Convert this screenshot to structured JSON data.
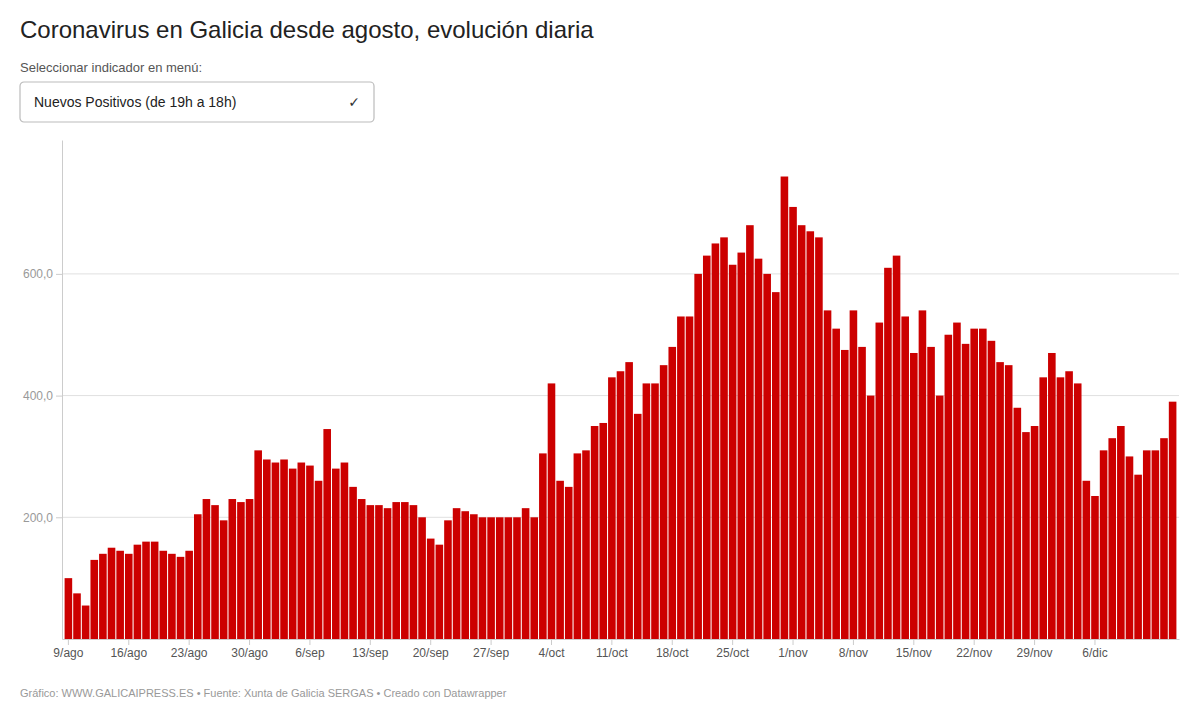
{
  "chart_data": {
    "type": "bar",
    "title": "Coronavirus en Galicia desde agosto, evolución diaria",
    "subtitle": "Seleccionar indicador en menú:",
    "annotations": [
      "Nuevos Positivos (de 19h a 18h)",
      "✓",
      "Gráfico: WWW.GALICAIPRESS.ES • Fuente: Xunta de Galicia SERGAS • Creado con Datawrapper"
    ],
    "categories": [
      "9/ago",
      null,
      null,
      null,
      null,
      null,
      null,
      "16/ago",
      null,
      null,
      null,
      null,
      null,
      null,
      "23/ago",
      null,
      null,
      null,
      null,
      null,
      null,
      "30/ago",
      null,
      null,
      null,
      null,
      null,
      null,
      "6/sep",
      null,
      null,
      null,
      null,
      null,
      null,
      "13/sep",
      null,
      null,
      null,
      null,
      null,
      null,
      "20/sep",
      null,
      null,
      null,
      null,
      null,
      null,
      "27/sep",
      null,
      null,
      null,
      null,
      null,
      null,
      "4/oct",
      null,
      null,
      null,
      null,
      null,
      null,
      "11/oct",
      null,
      null,
      null,
      null,
      null,
      null,
      "18/oct",
      null,
      null,
      null,
      null,
      null,
      null,
      "25/oct",
      null,
      null,
      null,
      null,
      null,
      null,
      "1/nov",
      null,
      null,
      null,
      null,
      null,
      null,
      "8/nov",
      null,
      null,
      null,
      null,
      null,
      null,
      "15/nov",
      null,
      null,
      null,
      null,
      null,
      null,
      "22/nov",
      null,
      null,
      null,
      null,
      null,
      null,
      "29/nov",
      null,
      null,
      null,
      null,
      null,
      null,
      "6/dic",
      null,
      null,
      null,
      null,
      null,
      null,
      null,
      null,
      null
    ],
    "values": [
      100,
      75,
      55,
      130,
      140,
      150,
      145,
      140,
      155,
      160,
      160,
      145,
      140,
      135,
      145,
      205,
      230,
      220,
      195,
      230,
      225,
      230,
      310,
      295,
      290,
      295,
      280,
      290,
      285,
      260,
      345,
      280,
      290,
      250,
      230,
      220,
      220,
      215,
      225,
      225,
      220,
      200,
      165,
      155,
      195,
      215,
      210,
      205,
      200,
      200,
      200,
      200,
      200,
      215,
      200,
      305,
      420,
      260,
      250,
      305,
      310,
      350,
      355,
      430,
      440,
      455,
      370,
      420,
      420,
      450,
      480,
      530,
      530,
      600,
      630,
      650,
      660,
      615,
      635,
      680,
      625,
      600,
      570,
      760,
      710,
      680,
      670,
      660,
      540,
      510,
      475,
      540,
      480,
      400,
      520,
      610,
      630,
      530,
      470,
      540,
      480,
      400,
      500,
      520,
      485,
      510,
      510,
      490,
      455,
      450,
      380,
      340,
      350,
      430,
      470,
      430,
      440,
      420,
      260,
      235,
      310,
      330,
      350,
      300,
      270,
      310,
      310,
      330,
      390
    ],
    "color": "#cc0000",
    "ylim": [
      0,
      820
    ],
    "yticks": [
      {
        "value": 200,
        "label": "200,0"
      },
      {
        "value": 400,
        "label": "400,0"
      },
      {
        "value": 600,
        "label": "600,0"
      }
    ],
    "grid": true
  }
}
